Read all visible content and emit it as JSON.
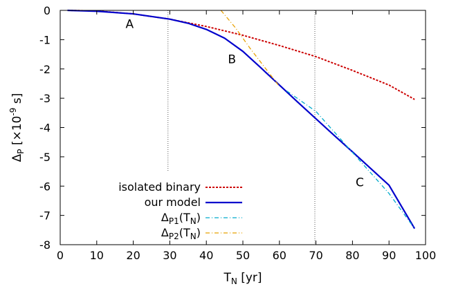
{
  "chart_data": {
    "type": "line",
    "xlabel": {
      "main": "T",
      "sub": "N",
      "unit": " [yr]"
    },
    "ylabel": {
      "main": "Δ",
      "sub": "P",
      "unit_pre": " [×10",
      "unit_exp": "-9",
      "unit_post": " s]"
    },
    "xlim": [
      0,
      100
    ],
    "ylim": [
      -8,
      0
    ],
    "x_ticks": [
      0,
      10,
      20,
      30,
      40,
      50,
      60,
      70,
      80,
      90,
      100
    ],
    "x_tick_labels": [
      "0",
      "10",
      "20",
      "30",
      "40",
      "50",
      "60",
      "70",
      "80",
      "90",
      "100"
    ],
    "y_ticks": [
      0,
      -1,
      -2,
      -3,
      -4,
      -5,
      -6,
      -7,
      -8
    ],
    "y_tick_labels": [
      "0",
      "-1",
      "-2",
      "-3",
      "-4",
      "-5",
      "-6",
      "-7",
      "-8"
    ],
    "grid": false,
    "legend_position": "bottom-left",
    "vertical_markers": [
      {
        "x": 29.5,
        "y_from": 0,
        "y_to": -5.5
      },
      {
        "x": 69.7,
        "y_from": 0,
        "y_to": -8
      }
    ],
    "annotations": [
      {
        "text": "A",
        "x": 19,
        "y": -0.6
      },
      {
        "text": "B",
        "x": 47,
        "y": -1.8
      },
      {
        "text": "C",
        "x": 82,
        "y": -6
      }
    ],
    "series": [
      {
        "name": "isolated binary",
        "color": "#cc0000",
        "style": "dotted",
        "x": [
          2,
          10,
          20,
          30,
          40,
          50,
          60,
          70,
          80,
          90,
          97
        ],
        "y": [
          0,
          -0.02,
          -0.12,
          -0.3,
          -0.55,
          -0.85,
          -1.2,
          -1.58,
          -2.05,
          -2.55,
          -3.04
        ]
      },
      {
        "name": "our model",
        "color": "#0000cc",
        "style": "solid",
        "x": [
          2,
          10,
          20,
          30,
          35,
          40,
          45,
          50,
          55,
          60,
          65,
          70,
          75,
          80,
          85,
          90,
          97
        ],
        "y": [
          0,
          -0.03,
          -0.12,
          -0.3,
          -0.44,
          -0.65,
          -0.95,
          -1.4,
          -1.97,
          -2.55,
          -3.13,
          -3.7,
          -4.27,
          -4.83,
          -5.4,
          -5.97,
          -7.45
        ]
      },
      {
        "name_main": "Δ",
        "name_sub": "P1",
        "name_tail": "(T",
        "name_tail_sub": "N",
        "name_end": ")",
        "color": "#00aacc",
        "style": "dashdot",
        "x": [
          62,
          70,
          80,
          90,
          97
        ],
        "y": [
          -2.75,
          -3.45,
          -4.85,
          -6.25,
          -7.45
        ]
      },
      {
        "name_main": "Δ",
        "name_sub": "P2",
        "name_tail": "(T",
        "name_tail_sub": "N",
        "name_end": ")",
        "color": "#e8a000",
        "style": "dashdot",
        "x": [
          44,
          48,
          52,
          56,
          60
        ],
        "y": [
          0,
          -0.6,
          -1.3,
          -1.95,
          -2.6
        ]
      }
    ]
  }
}
